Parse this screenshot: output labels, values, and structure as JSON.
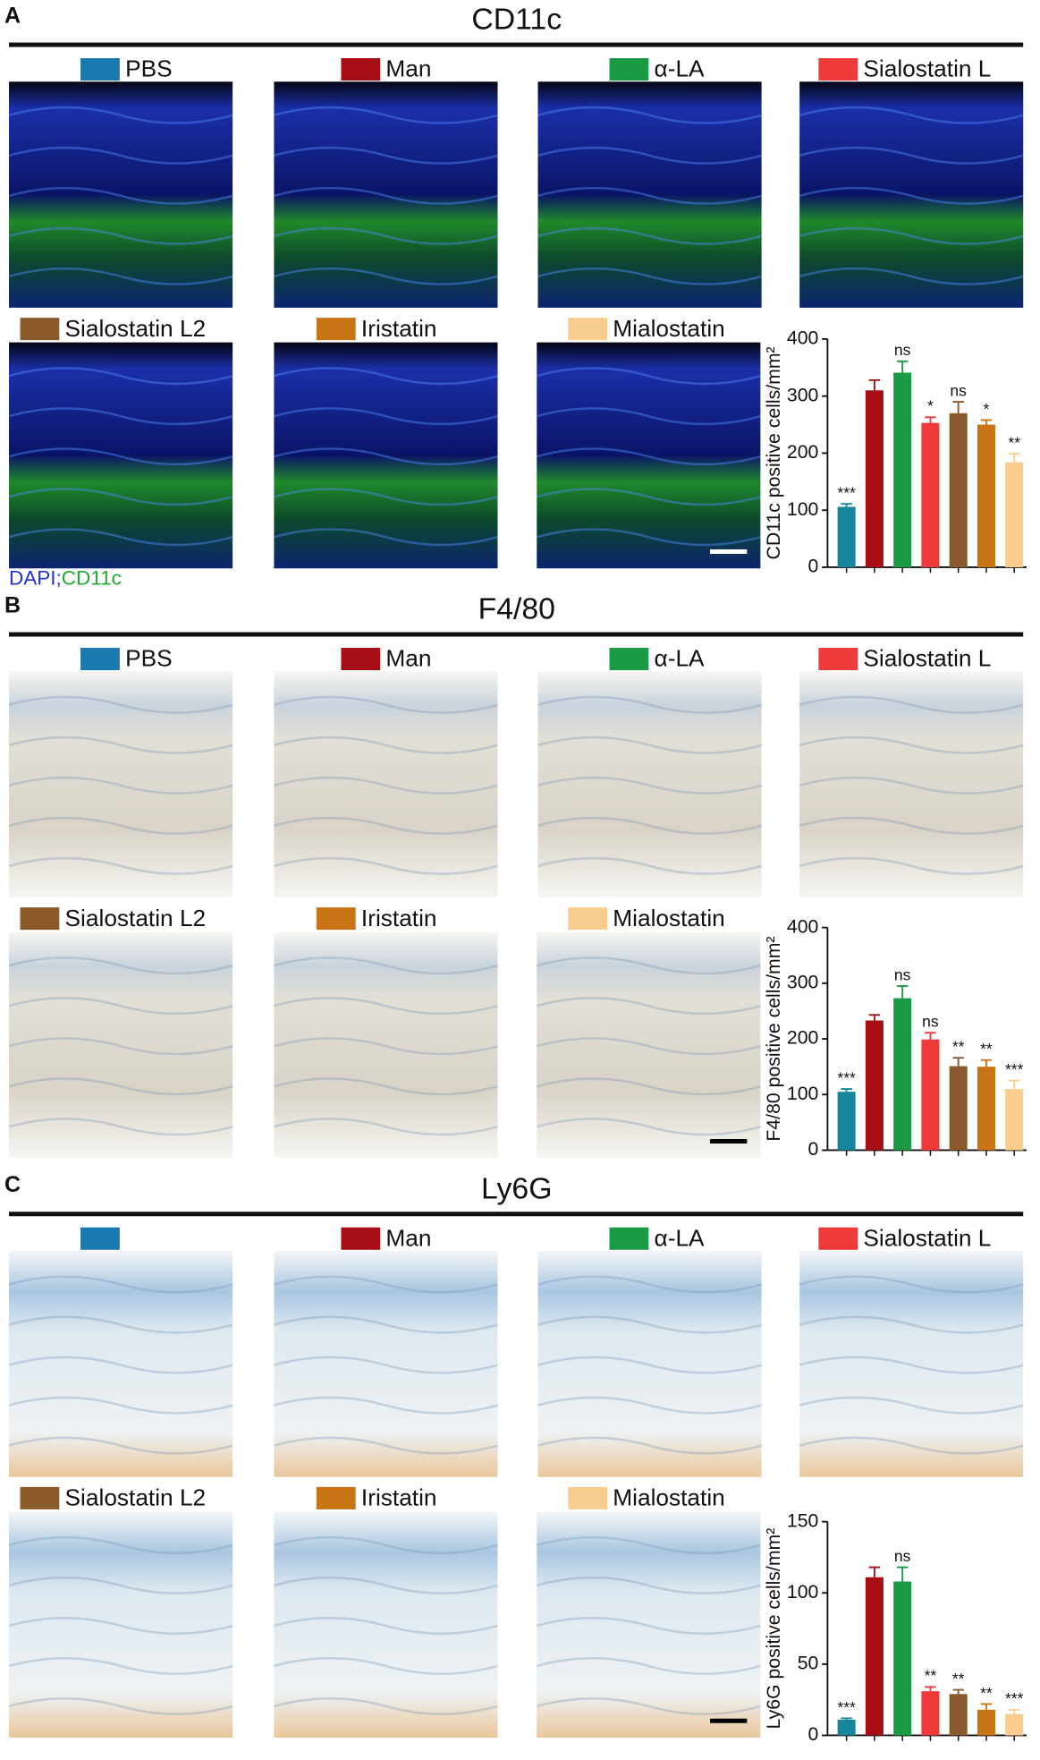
{
  "group_colors": [
    "#1a7ab0",
    "#a50f15",
    "#1a9a45",
    "#f03a3a",
    "#8b5a2b",
    "#c87414",
    "#f8cd8f"
  ],
  "panels": [
    {
      "letter": "A",
      "title": "CD11c",
      "legend": [
        "PBS",
        "Man",
        "α-LA",
        "Sialostatin L",
        "Sialostatin L2",
        "Iristatin",
        "Mialostatin"
      ],
      "caption": [
        "DAPI",
        ";",
        "CD11c"
      ]
    },
    {
      "letter": "B",
      "title": "F4/80",
      "legend": [
        "PBS",
        "Man",
        "α-LA",
        "Sialostatin L",
        "Sialostatin L2",
        "Iristatin",
        "Mialostatin"
      ]
    },
    {
      "letter": "C",
      "title": "Ly6G",
      "legend": [
        null,
        "Man",
        "α-LA",
        "Sialostatin L",
        "Sialostatin L2",
        "Iristatin",
        "Mialostatin"
      ]
    }
  ],
  "chart_data": [
    {
      "type": "bar",
      "ylabel": "CD11c positive cells/mm²",
      "ylim": [
        0,
        400
      ],
      "yticks": [
        0,
        100,
        200,
        300,
        400
      ],
      "colors": [
        "#17859a",
        "#a50f15",
        "#1a9a45",
        "#f03a3a",
        "#8b5a2b",
        "#c87414",
        "#f8cd8f"
      ],
      "values": [
        106,
        310,
        341,
        253,
        270,
        250,
        184
      ],
      "errors": [
        5,
        18,
        20,
        10,
        20,
        8,
        15
      ],
      "significance": [
        "***",
        null,
        "ns",
        "*",
        "ns",
        "*",
        "**"
      ]
    },
    {
      "type": "bar",
      "ylabel": "F4/80 positive cells/mm²",
      "ylim": [
        0,
        400
      ],
      "yticks": [
        0,
        100,
        200,
        300,
        400
      ],
      "colors": [
        "#17859a",
        "#a50f15",
        "#1a9a45",
        "#f03a3a",
        "#8b5a2b",
        "#c87414",
        "#f8cd8f"
      ],
      "values": [
        105,
        233,
        273,
        199,
        151,
        150,
        110
      ],
      "errors": [
        5,
        10,
        22,
        12,
        15,
        12,
        15
      ],
      "significance": [
        "***",
        null,
        "ns",
        "ns",
        "**",
        "**",
        "***"
      ]
    },
    {
      "type": "bar",
      "ylabel": "Ly6G positive cells/mm²",
      "ylim": [
        0,
        150
      ],
      "yticks": [
        0,
        50,
        100,
        150
      ],
      "colors": [
        "#17859a",
        "#a50f15",
        "#1a9a45",
        "#f03a3a",
        "#8b5a2b",
        "#c87414",
        "#f8cd8f"
      ],
      "values": [
        11,
        111,
        108,
        31,
        29,
        18,
        15
      ],
      "errors": [
        1,
        7,
        10,
        3,
        3,
        4,
        3
      ],
      "significance": [
        "***",
        null,
        "ns",
        "**",
        "**",
        "**",
        "***"
      ]
    }
  ]
}
